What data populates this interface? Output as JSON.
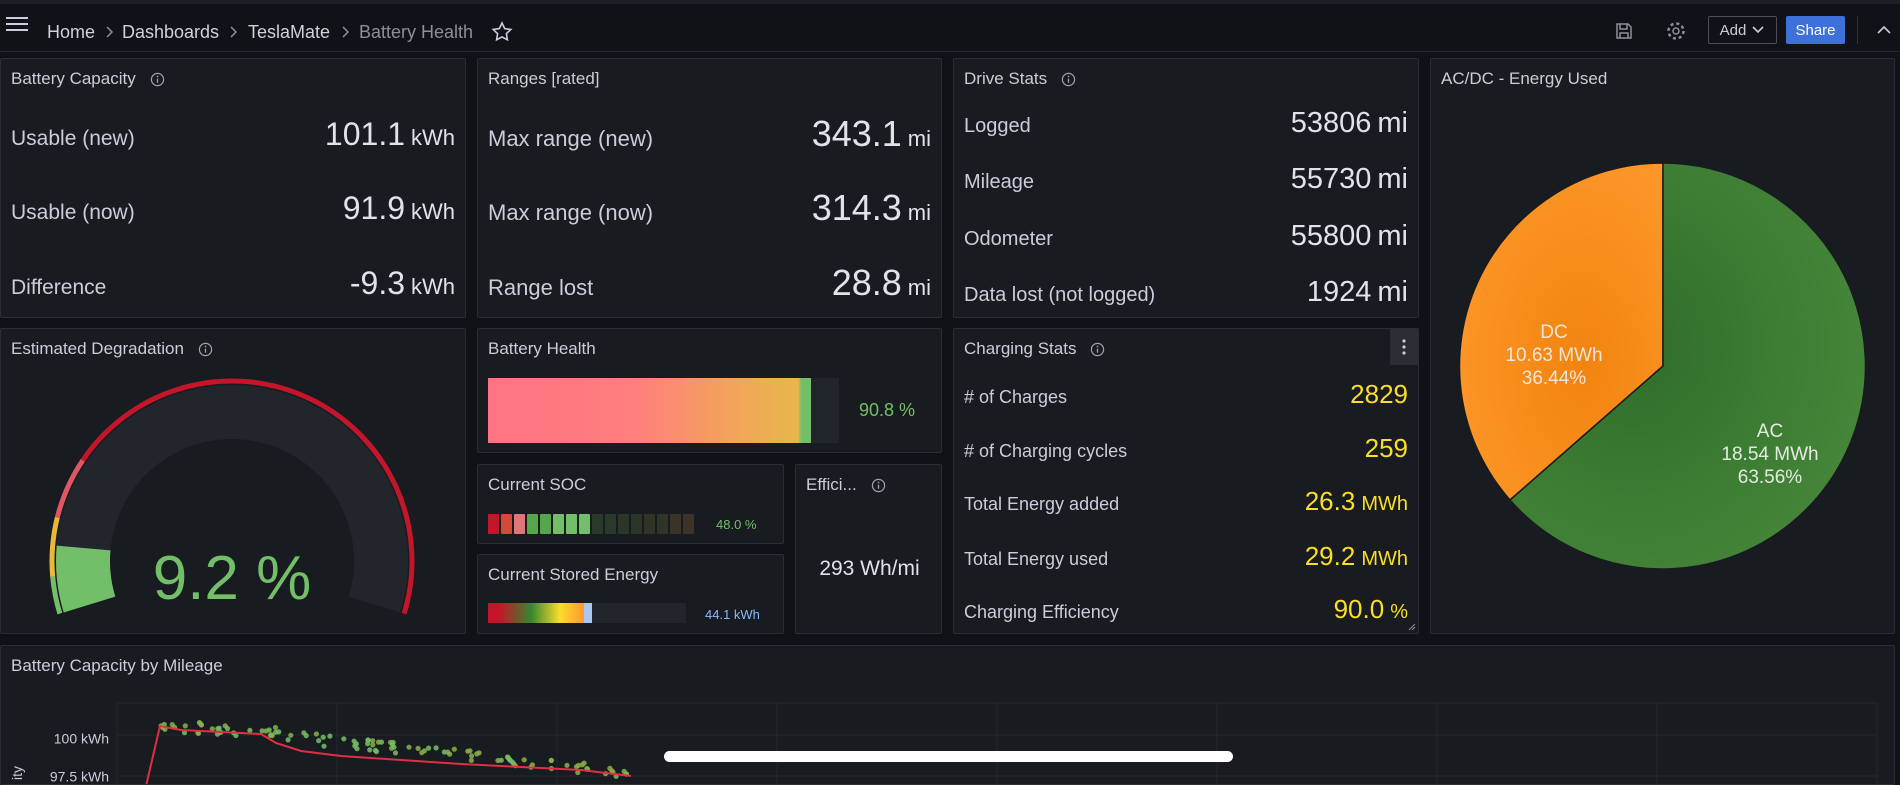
{
  "breadcrumb": [
    "Home",
    "Dashboards",
    "TeslaMate",
    "Battery Health"
  ],
  "toolbar": {
    "add": "Add",
    "share": "Share"
  },
  "panels": {
    "battery_capacity": {
      "title": "Battery Capacity",
      "rows": [
        {
          "label": "Usable (new)",
          "value": "101.1",
          "unit": "kWh"
        },
        {
          "label": "Usable (now)",
          "value": "91.9",
          "unit": "kWh"
        },
        {
          "label": "Difference",
          "value": "-9.3",
          "unit": "kWh"
        }
      ]
    },
    "ranges": {
      "title": "Ranges [rated]",
      "rows": [
        {
          "label": "Max range (new)",
          "value": "343.1",
          "unit": "mi"
        },
        {
          "label": "Max range (now)",
          "value": "314.3",
          "unit": "mi"
        },
        {
          "label": "Range lost",
          "value": "28.8",
          "unit": "mi"
        }
      ]
    },
    "drive_stats": {
      "title": "Drive Stats",
      "rows": [
        {
          "label": "Logged",
          "value": "53806",
          "unit": "mi"
        },
        {
          "label": "Mileage",
          "value": "55730",
          "unit": "mi"
        },
        {
          "label": "Odometer",
          "value": "55800",
          "unit": "mi"
        },
        {
          "label": "Data lost (not logged)",
          "value": "1924",
          "unit": "mi"
        }
      ]
    },
    "ac_dc": {
      "title": "AC/DC - Energy Used",
      "slices": [
        {
          "name": "DC",
          "energy": "10.63 MWh",
          "percent": "36.44%"
        },
        {
          "name": "AC",
          "energy": "18.54 MWh",
          "percent": "63.56%"
        }
      ]
    },
    "degradation": {
      "title": "Estimated Degradation",
      "value": "9.2 %"
    },
    "battery_health": {
      "title": "Battery Health",
      "value": "90.8 %"
    },
    "current_soc": {
      "title": "Current SOC",
      "value": "48.0 %"
    },
    "efficiency": {
      "title": "Effici...",
      "value": "293 Wh/mi"
    },
    "stored_energy": {
      "title": "Current Stored Energy",
      "value": "44.1 kWh"
    },
    "charging_stats": {
      "title": "Charging Stats",
      "rows": [
        {
          "label": "# of Charges",
          "value": "2829"
        },
        {
          "label": "# of Charging cycles",
          "value": "259"
        },
        {
          "label": "Total Energy added",
          "value": "26.3",
          "unit": "MWh"
        },
        {
          "label": "Total Energy used",
          "value": "29.2",
          "unit": "MWh"
        },
        {
          "label": "Charging Efficiency",
          "value": "90.0",
          "unit": "%"
        }
      ]
    },
    "capacity_by_mileage": {
      "title": "Battery Capacity by Mileage",
      "y_axis_label": "ity",
      "yticks": [
        "100 kWh",
        "97.5 kWh"
      ]
    }
  }
}
